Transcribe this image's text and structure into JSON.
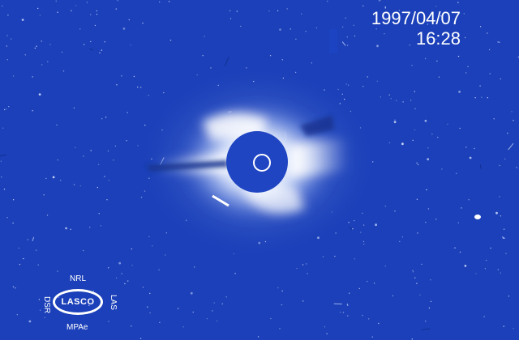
{
  "image": {
    "date": "1997/04/07",
    "time": "16:28",
    "logo": {
      "top": "NRL",
      "center": "LASCO",
      "bottom": "MPAe",
      "left": "DSR",
      "right": "LAS",
      "icon_name": "lasco-logo-icon"
    },
    "colors": {
      "background": "#1b40b9",
      "corona": "#ffffff",
      "occulter": "#1f45c2",
      "text": "#ffffff"
    }
  }
}
